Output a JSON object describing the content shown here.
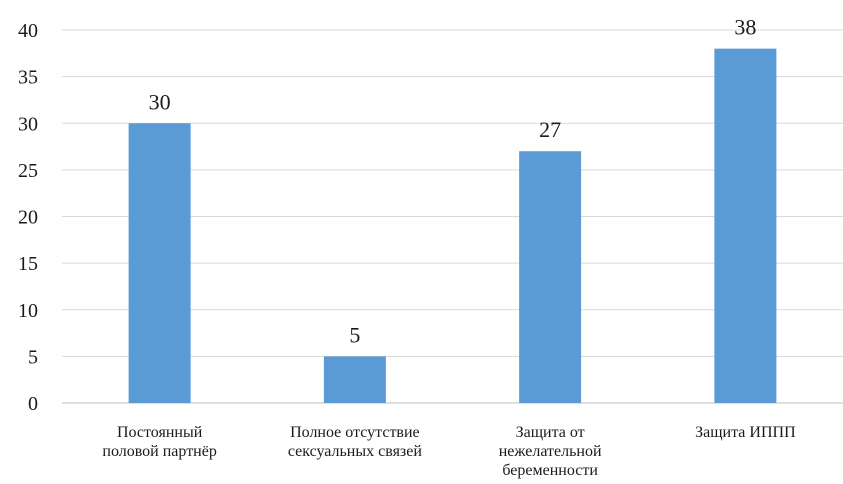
{
  "chart_data": {
    "type": "bar",
    "categories": [
      [
        "Постоянный",
        "половой партнёр"
      ],
      [
        "Полное отсутствие",
        "сексуальных связей"
      ],
      [
        "Защита от",
        "нежелательной",
        "беременности"
      ],
      [
        "Защита ИППП"
      ]
    ],
    "values": [
      30,
      5,
      27,
      38
    ],
    "data_labels": [
      "30",
      "5",
      "27",
      "38"
    ],
    "yticks": [
      "0",
      "5",
      "10",
      "15",
      "20",
      "25",
      "30",
      "35",
      "40"
    ],
    "ylim": [
      0,
      40
    ],
    "grid": true,
    "legend": "none",
    "colors": {
      "bar": "#5b9bd5"
    }
  }
}
